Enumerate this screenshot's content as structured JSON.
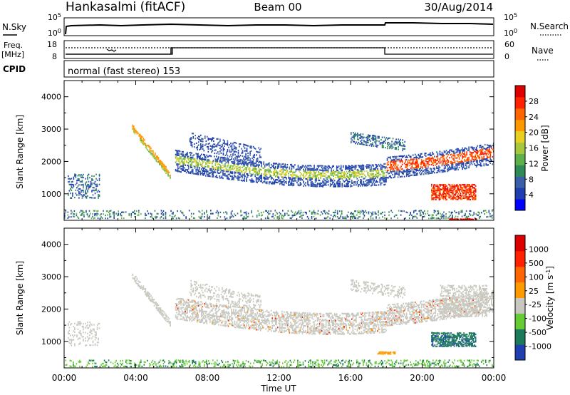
{
  "header": {
    "station": "Hankasalmi (fitACF)",
    "beam": "Beam 00",
    "date": "30/Aug/2014"
  },
  "panels": {
    "nsky_label": "N.Sky",
    "nsearch_label": "N.Search",
    "nsky_ticks": [
      "10^5",
      "10^0"
    ],
    "nsearch_ticks": [
      "10^5",
      "10^0"
    ],
    "freq_label_1": "Freq.",
    "freq_label_2": "[MHz]",
    "freq_ticks": [
      "18",
      "8"
    ],
    "nave_label": "Nave",
    "nave_ticks": [
      "60",
      "0"
    ],
    "cpid_label": "CPID",
    "cpid_text": "normal (fast stereo) 153"
  },
  "colors": {
    "power_scale": [
      "#0000ff",
      "#1f3fb0",
      "#3a5fa8",
      "#2e8b57",
      "#5fb04a",
      "#a8c83c",
      "#e8d020",
      "#ff9900",
      "#ff6600",
      "#ff2200",
      "#dd0000"
    ],
    "velocity_scale": [
      "#1f3fb0",
      "#1a7a5a",
      "#66cc33",
      "#c8c8c0",
      "#ff9900",
      "#ff6600",
      "#ff2200",
      "#dd0000"
    ]
  },
  "chart_data": [
    {
      "type": "heatmap",
      "title": "",
      "xlabel": "Time UT",
      "ylabel": "Slant Range [km]",
      "x_ticks": [
        "00:00",
        "04:00",
        "08:00",
        "12:00",
        "16:00",
        "20:00",
        "00:00"
      ],
      "y_ticks": [
        "1000",
        "2000",
        "3000",
        "4000"
      ],
      "ylim": [
        180,
        4500
      ],
      "colorbar_label": "Power [dB]",
      "colorbar_ticks": [
        "4",
        "8",
        "12",
        "16",
        "20",
        "24",
        "28"
      ],
      "clim": [
        0,
        32
      ]
    },
    {
      "type": "heatmap",
      "title": "",
      "xlabel": "Time UT",
      "ylabel": "Slant Range [km]",
      "x_ticks": [
        "00:00",
        "04:00",
        "08:00",
        "12:00",
        "16:00",
        "20:00",
        "00:00"
      ],
      "y_ticks": [
        "1000",
        "2000",
        "3000",
        "4000"
      ],
      "ylim": [
        180,
        4500
      ],
      "colorbar_label": "Velocity [m s^-1]",
      "colorbar_ticks": [
        "1000",
        "500",
        "100",
        "25",
        "-25",
        "-100",
        "-500",
        "-1000"
      ]
    }
  ]
}
